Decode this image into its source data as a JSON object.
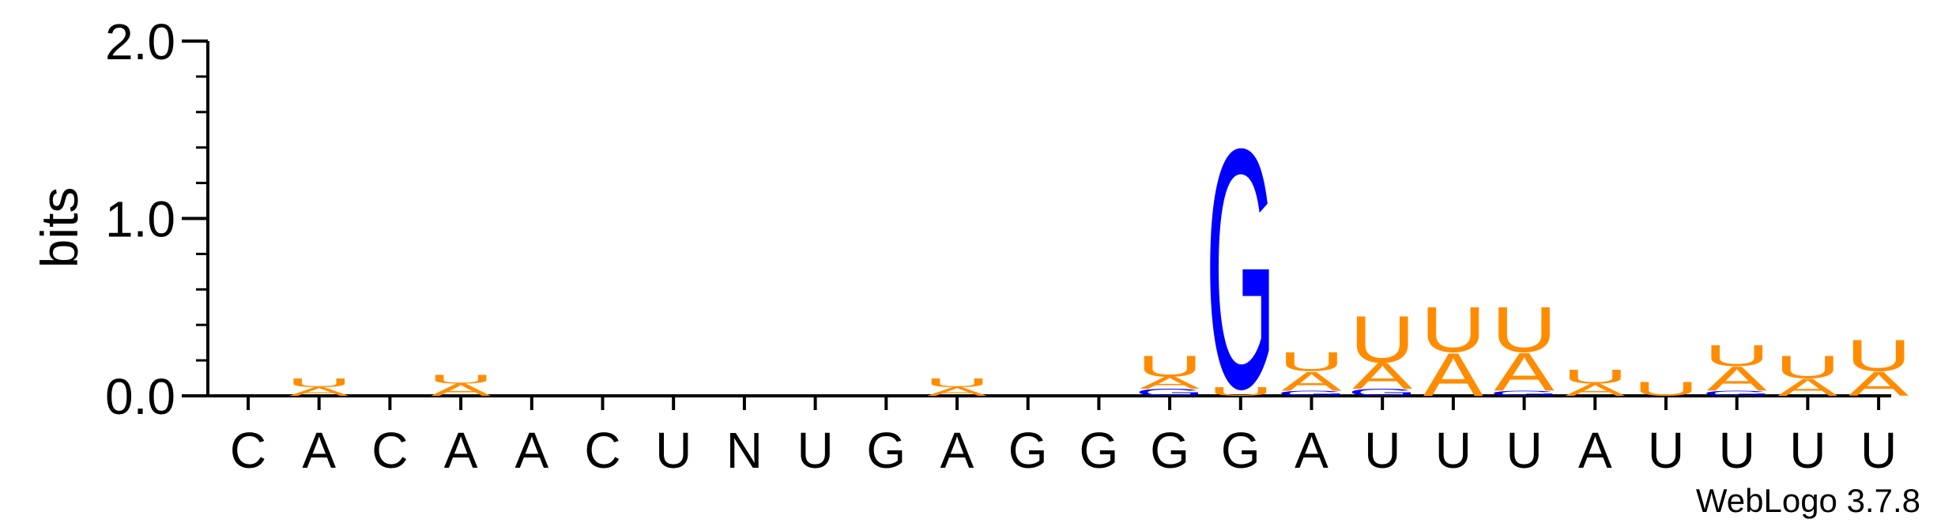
{
  "chart_data": {
    "type": "sequence-logo",
    "ylabel": "bits",
    "ylim": [
      0,
      2.0
    ],
    "yticks": [
      "0.0",
      "1.0",
      "2.0"
    ],
    "credit": "WebLogo 3.7.8",
    "colors": {
      "A": "#ff8c00",
      "U": "#ff8c00",
      "G": "#0000ff",
      "C": "#0000ff"
    },
    "positions": [
      {
        "consensus": "C",
        "stack": []
      },
      {
        "consensus": "A",
        "stack": [
          {
            "letter": "A",
            "bits": 0.05
          },
          {
            "letter": "U",
            "bits": 0.05
          }
        ]
      },
      {
        "consensus": "C",
        "stack": []
      },
      {
        "consensus": "A",
        "stack": [
          {
            "letter": "A",
            "bits": 0.07
          },
          {
            "letter": "U",
            "bits": 0.05
          }
        ]
      },
      {
        "consensus": "A",
        "stack": []
      },
      {
        "consensus": "C",
        "stack": []
      },
      {
        "consensus": "U",
        "stack": []
      },
      {
        "consensus": "N",
        "stack": []
      },
      {
        "consensus": "U",
        "stack": []
      },
      {
        "consensus": "G",
        "stack": []
      },
      {
        "consensus": "A",
        "stack": [
          {
            "letter": "A",
            "bits": 0.05
          },
          {
            "letter": "U",
            "bits": 0.05
          }
        ]
      },
      {
        "consensus": "G",
        "stack": []
      },
      {
        "consensus": "G",
        "stack": []
      },
      {
        "consensus": "G",
        "stack": [
          {
            "letter": "G",
            "bits": 0.04
          },
          {
            "letter": "A",
            "bits": 0.07
          },
          {
            "letter": "U",
            "bits": 0.12
          }
        ]
      },
      {
        "consensus": "G",
        "stack": [
          {
            "letter": "U",
            "bits": 0.05
          },
          {
            "letter": "G",
            "bits": 1.38
          }
        ]
      },
      {
        "consensus": "A",
        "stack": [
          {
            "letter": "G",
            "bits": 0.03
          },
          {
            "letter": "A",
            "bits": 0.11
          },
          {
            "letter": "U",
            "bits": 0.11
          }
        ]
      },
      {
        "consensus": "U",
        "stack": [
          {
            "letter": "G",
            "bits": 0.04
          },
          {
            "letter": "A",
            "bits": 0.15
          },
          {
            "letter": "U",
            "bits": 0.27
          }
        ]
      },
      {
        "consensus": "U",
        "stack": [
          {
            "letter": "A",
            "bits": 0.25
          },
          {
            "letter": "U",
            "bits": 0.26
          }
        ]
      },
      {
        "consensus": "U",
        "stack": [
          {
            "letter": "G",
            "bits": 0.03
          },
          {
            "letter": "A",
            "bits": 0.22
          },
          {
            "letter": "U",
            "bits": 0.26
          }
        ]
      },
      {
        "consensus": "A",
        "stack": [
          {
            "letter": "A",
            "bits": 0.07
          },
          {
            "letter": "U",
            "bits": 0.08
          }
        ]
      },
      {
        "consensus": "U",
        "stack": [
          {
            "letter": "U",
            "bits": 0.08
          }
        ]
      },
      {
        "consensus": "U",
        "stack": [
          {
            "letter": "G",
            "bits": 0.03
          },
          {
            "letter": "A",
            "bits": 0.14
          },
          {
            "letter": "U",
            "bits": 0.12
          }
        ]
      },
      {
        "consensus": "U",
        "stack": [
          {
            "letter": "A",
            "bits": 0.1
          },
          {
            "letter": "U",
            "bits": 0.13
          }
        ]
      },
      {
        "consensus": "U",
        "stack": [
          {
            "letter": "A",
            "bits": 0.14
          },
          {
            "letter": "U",
            "bits": 0.18
          }
        ]
      }
    ]
  }
}
